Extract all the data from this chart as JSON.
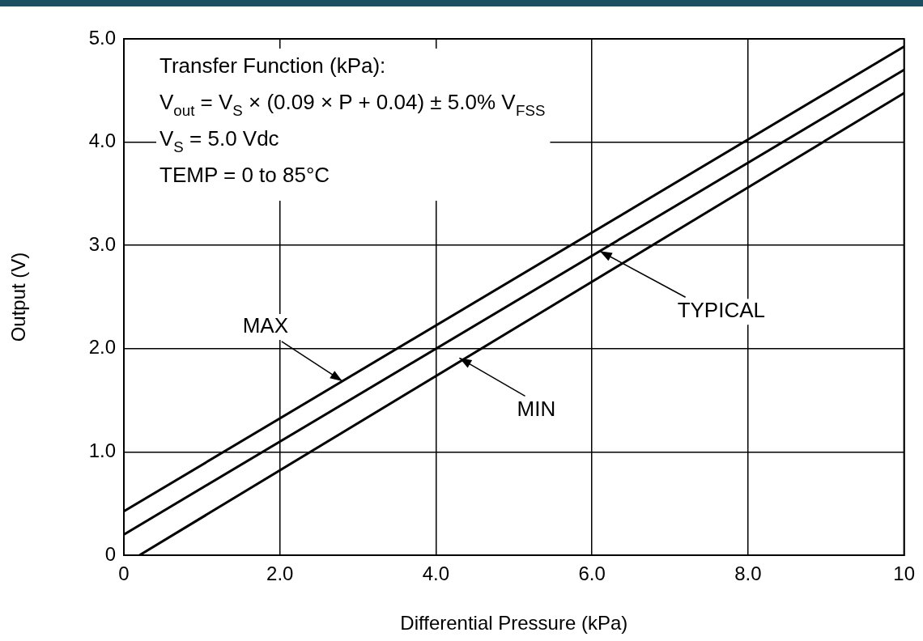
{
  "chart_data": {
    "type": "line",
    "xlabel": "Differential Pressure (kPa)",
    "ylabel": "Output (V)",
    "x": [
      0,
      10
    ],
    "series": [
      {
        "color": "#000000",
        "values": [
          0.425,
          4.925
        ]
      },
      {
        "color": "#000000",
        "values": [
          0.2,
          4.7
        ]
      },
      {
        "color": "#000000",
        "x": [
          0.2,
          10
        ],
        "values": [
          0,
          4.475
        ]
      }
    ],
    "xlim": [
      0,
      10
    ],
    "xticks": [
      0,
      {
        "value": 2,
        "label": "2.0"
      },
      {
        "value": 4,
        "label": "4.0"
      },
      {
        "value": 6,
        "label": "6.0"
      },
      {
        "value": 8,
        "label": "8.0"
      },
      10
    ],
    "ylim": [
      0,
      5
    ],
    "yticks": [
      0,
      {
        "value": 1,
        "label": "1.0"
      },
      {
        "value": 2,
        "label": "2.0"
      },
      {
        "value": 3,
        "label": "3.0"
      },
      {
        "value": 4,
        "label": "4.0"
      },
      {
        "value": 5,
        "label": "5.0"
      }
    ],
    "grid": true,
    "legend": false,
    "marker": "none",
    "line_style": "solid",
    "annotations": [
      "Transfer Function (kPa):",
      "V$_{out}$ = V$_{S}$ × (0.09 × P + 0.04) ± 5.0% V$_{FSS}$",
      "V$_{S}$ = 5.0 Vdc",
      "TEMP = 0 to 85°C",
      {
        "text": "MAX",
        "x": 2.8,
        "y": 1.685
      },
      {
        "text": "TYPICAL",
        "x": 6.1,
        "y": 2.945
      },
      {
        "text": "MIN",
        "x": 4.3,
        "y": 1.91
      }
    ]
  }
}
